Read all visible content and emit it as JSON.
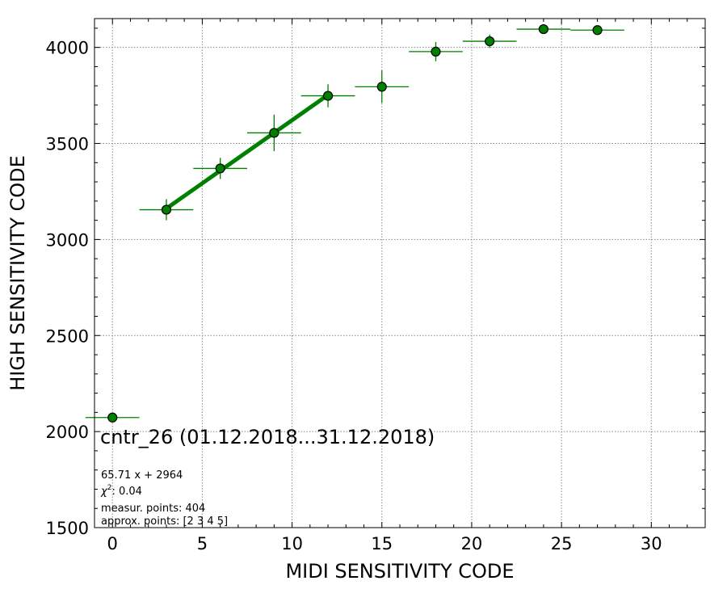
{
  "chart_data": {
    "type": "scatter",
    "title": "",
    "xlabel": "MIDI SENSITIVITY CODE",
    "ylabel": "HIGH SENSITIVITY CODE",
    "xlim": [
      -1,
      33
    ],
    "ylim": [
      1500,
      4150
    ],
    "x_ticks": [
      0,
      5,
      10,
      15,
      20,
      25,
      30
    ],
    "y_ticks": [
      1500,
      2000,
      2500,
      3000,
      3500,
      4000
    ],
    "grid": true,
    "colors": {
      "marker_fill": "#008000",
      "marker_edge": "#000000",
      "errorbar": "#008000",
      "fit_line": "#008000"
    },
    "series": [
      {
        "x": [
          0,
          3,
          6,
          9,
          12,
          15,
          18,
          21,
          24,
          27
        ],
        "y": [
          2073,
          3155,
          3370,
          3555,
          3748,
          3795,
          3978,
          4032,
          4095,
          4090
        ],
        "xerr": [
          1.5,
          1.5,
          1.5,
          1.5,
          1.5,
          1.5,
          1.5,
          1.5,
          1.5,
          1.5
        ],
        "yerr": [
          10,
          55,
          55,
          95,
          60,
          85,
          50,
          35,
          12,
          10
        ]
      }
    ],
    "fit": {
      "x_range": [
        3,
        12
      ],
      "slope": 65.71,
      "intercept": 2964
    },
    "annotations": {
      "main": "cntr_26 (01.12.2018...31.12.2018)",
      "fit_text": "65.71 x + 2964",
      "chi2_label": "χ",
      "chi2_sup": "2",
      "chi2_value": ": 0.04",
      "measur_points": "measur. points: 404",
      "approx_points": "approx. points: [2 3 4 5]"
    }
  }
}
